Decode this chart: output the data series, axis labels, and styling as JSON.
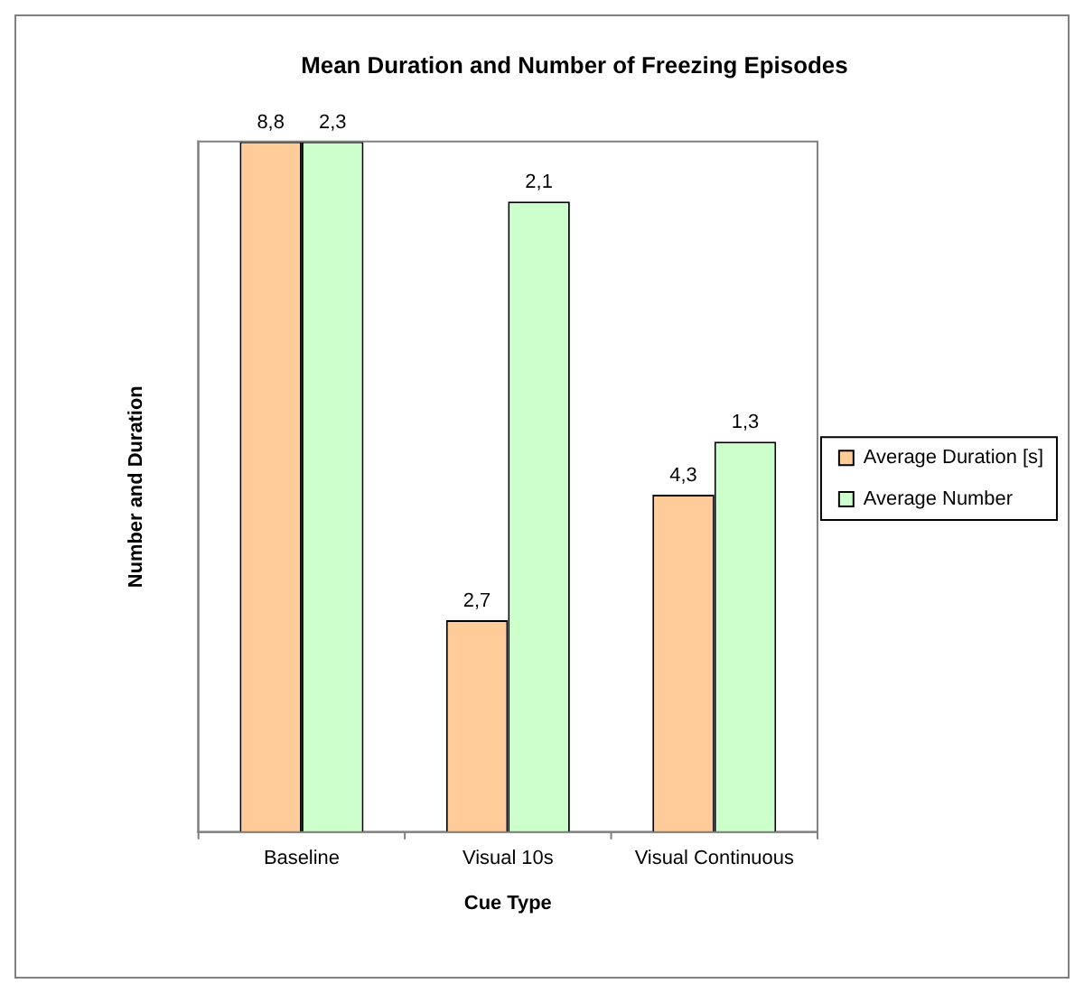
{
  "chart_data": {
    "type": "bar",
    "title": "Mean Duration and Number of Freezing Episodes",
    "xlabel": "Cue Type",
    "ylabel": "Number and Duration",
    "categories": [
      "Baseline",
      "Visual 10s",
      "Visual Continuous"
    ],
    "series": [
      {
        "name": "Average Duration [s]",
        "color": "#ffcc99",
        "values": [
          8.8,
          2.7,
          4.3
        ],
        "value_labels": [
          "8,8",
          "2,7",
          "4,3"
        ]
      },
      {
        "name": "Average Number",
        "color": "#ccffcc",
        "values": [
          2.3,
          2.1,
          1.3
        ],
        "value_labels": [
          "2,3",
          "2,1",
          "1,3"
        ],
        "axis": "y2"
      }
    ],
    "ylim": [
      0,
      8.8
    ],
    "y2lim": [
      0,
      2.3
    ],
    "tick_labels": "x",
    "grid": false,
    "legend": "right"
  }
}
